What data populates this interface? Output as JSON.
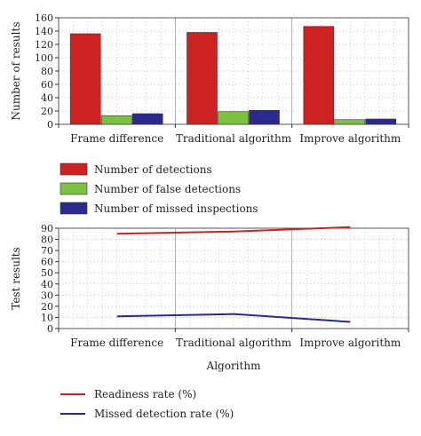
{
  "chart_data": [
    {
      "type": "bar",
      "categories": [
        "Frame difference",
        "Traditional algorithm",
        "Improve algorithm"
      ],
      "series": [
        {
          "name": "Number of detections",
          "values": [
            136,
            138,
            147
          ],
          "color": "#cc2222"
        },
        {
          "name": "Number of false detections",
          "values": [
            13,
            19,
            7
          ],
          "color": "#7cc242"
        },
        {
          "name": "Number of missed inspections",
          "values": [
            16,
            21,
            8
          ],
          "color": "#2b2a8c"
        }
      ],
      "ylabel": "Number of results",
      "xlabel": "",
      "ylim": [
        0,
        160
      ],
      "yticks": [
        "0",
        "20",
        "40",
        "60",
        "80",
        "100",
        "120",
        "140",
        "160"
      ],
      "grid": true,
      "legend": "below"
    },
    {
      "type": "line",
      "categories": [
        "Frame difference",
        "Traditional algorithm",
        "Improve algorithm"
      ],
      "series": [
        {
          "name": "Readiness rate (%)",
          "values": [
            85,
            87,
            91
          ],
          "color": "#cc2222"
        },
        {
          "name": "Missed detection rate (%)",
          "values": [
            11,
            13,
            6
          ],
          "color": "#2b2a8c"
        }
      ],
      "ylabel": "Test results",
      "xlabel": "Algorithm",
      "ylim": [
        0,
        90
      ],
      "yticks": [
        "0",
        "10",
        "20",
        "30",
        "40",
        "50",
        "60",
        "70",
        "80",
        "90"
      ],
      "grid": true,
      "legend": "below"
    }
  ]
}
